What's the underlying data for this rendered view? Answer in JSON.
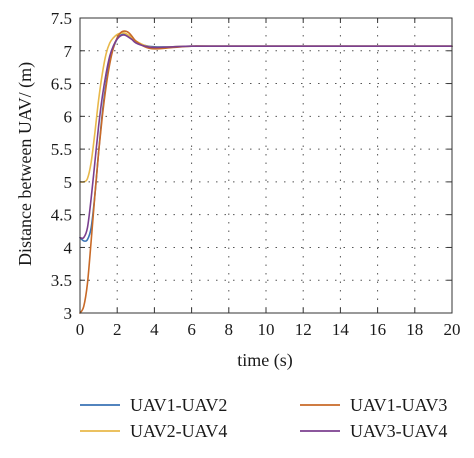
{
  "chart_data": {
    "type": "line",
    "xlabel": "time (s)",
    "ylabel": "Distance between UAV/ (m)",
    "xlim": [
      0,
      20
    ],
    "ylim": [
      3,
      7.5
    ],
    "xticks": [
      0,
      2,
      4,
      6,
      8,
      10,
      12,
      14,
      16,
      18,
      20
    ],
    "yticks": [
      3,
      3.5,
      4,
      4.5,
      5,
      5.5,
      6,
      6.5,
      7,
      7.5
    ],
    "grid": true,
    "legend_position": "bottom",
    "series": [
      {
        "name": "UAV1-UAV2",
        "color": "#3a73b5",
        "x": [
          0,
          0.2,
          0.4,
          0.6,
          0.8,
          1.0,
          1.2,
          1.4,
          1.6,
          1.8,
          2.0,
          2.2,
          2.4,
          2.6,
          2.8,
          3.0,
          3.5,
          4.0,
          5.0,
          6.0,
          8.0,
          20.0
        ],
        "y": [
          4.15,
          4.1,
          4.12,
          4.3,
          4.8,
          5.45,
          6.05,
          6.5,
          6.85,
          7.05,
          7.18,
          7.24,
          7.25,
          7.22,
          7.18,
          7.13,
          7.08,
          7.06,
          7.06,
          7.07,
          7.07,
          7.07
        ]
      },
      {
        "name": "UAV2-UAV4",
        "color": "#e8b84a",
        "x": [
          0,
          0.2,
          0.4,
          0.6,
          0.8,
          1.0,
          1.2,
          1.4,
          1.6,
          1.8,
          2.0,
          2.2,
          2.4,
          2.6,
          2.8,
          3.0,
          3.5,
          4.0,
          5.0,
          6.0,
          8.0,
          20.0
        ],
        "y": [
          5.0,
          5.0,
          5.05,
          5.3,
          5.75,
          6.25,
          6.65,
          6.95,
          7.12,
          7.2,
          7.25,
          7.27,
          7.27,
          7.24,
          7.2,
          7.15,
          7.08,
          7.05,
          7.06,
          7.07,
          7.07,
          7.07
        ]
      },
      {
        "name": "UAV1-UAV3",
        "color": "#c86a28",
        "x": [
          0,
          0.2,
          0.4,
          0.6,
          0.8,
          1.0,
          1.2,
          1.4,
          1.6,
          1.8,
          2.0,
          2.2,
          2.4,
          2.6,
          2.8,
          3.0,
          3.5,
          4.0,
          5.0,
          6.0,
          8.0,
          20.0
        ],
        "y": [
          3.0,
          3.1,
          3.45,
          4.1,
          4.8,
          5.45,
          6.0,
          6.45,
          6.8,
          7.05,
          7.2,
          7.28,
          7.3,
          7.28,
          7.22,
          7.15,
          7.06,
          7.03,
          7.05,
          7.07,
          7.07,
          7.07
        ]
      },
      {
        "name": "UAV3-UAV4",
        "color": "#7b3f8f",
        "x": [
          0,
          0.2,
          0.4,
          0.6,
          0.8,
          1.0,
          1.2,
          1.4,
          1.6,
          1.8,
          2.0,
          2.2,
          2.4,
          2.6,
          2.8,
          3.0,
          3.5,
          4.0,
          5.0,
          6.0,
          8.0,
          20.0
        ],
        "y": [
          4.15,
          4.15,
          4.3,
          4.75,
          5.3,
          5.85,
          6.3,
          6.65,
          6.92,
          7.08,
          7.18,
          7.23,
          7.24,
          7.21,
          7.17,
          7.12,
          7.07,
          7.05,
          7.06,
          7.07,
          7.07,
          7.07
        ]
      }
    ]
  }
}
